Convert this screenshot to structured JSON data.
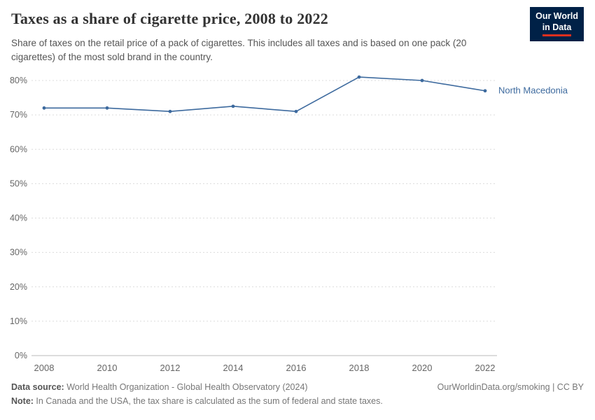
{
  "logo": {
    "line1": "Our World",
    "line2": "in Data",
    "bg_color": "#002147",
    "accent_color": "#e0301e"
  },
  "header": {
    "title": "Taxes as a share of cigarette price, 2008 to 2022",
    "subtitle": "Share of taxes on the retail price of a pack of cigarettes. This includes all taxes and is based on one pack (20 cigarettes) of the most sold brand in the country."
  },
  "chart_data": {
    "type": "line",
    "x": [
      2008,
      2010,
      2012,
      2014,
      2016,
      2018,
      2020,
      2022
    ],
    "xticks": [
      "2008",
      "2010",
      "2012",
      "2014",
      "2016",
      "2018",
      "2020",
      "2022"
    ],
    "yticks": [
      0,
      10,
      20,
      30,
      40,
      50,
      60,
      70,
      80
    ],
    "ytick_suffix": "%",
    "ylim": [
      0,
      85
    ],
    "grid": "dashed",
    "series": [
      {
        "name": "North Macedonia",
        "color": "#3d6a9e",
        "values": [
          72,
          72,
          71,
          72.5,
          71,
          81,
          80,
          77
        ]
      }
    ],
    "colors": {
      "grid": "#dcdcdc",
      "axis": "#b8b8b8",
      "tick_label": "#666666"
    },
    "title": "Taxes as a share of cigarette price, 2008 to 2022",
    "xlabel": "",
    "ylabel": ""
  },
  "footer": {
    "datasource_label": "Data source:",
    "datasource_text": " World Health Organization - Global Health Observatory (2024)",
    "credit": "OurWorldinData.org/smoking | CC BY",
    "note_label": "Note:",
    "note_text": " In Canada and the USA, the tax share is calculated as the sum of federal and state taxes."
  }
}
